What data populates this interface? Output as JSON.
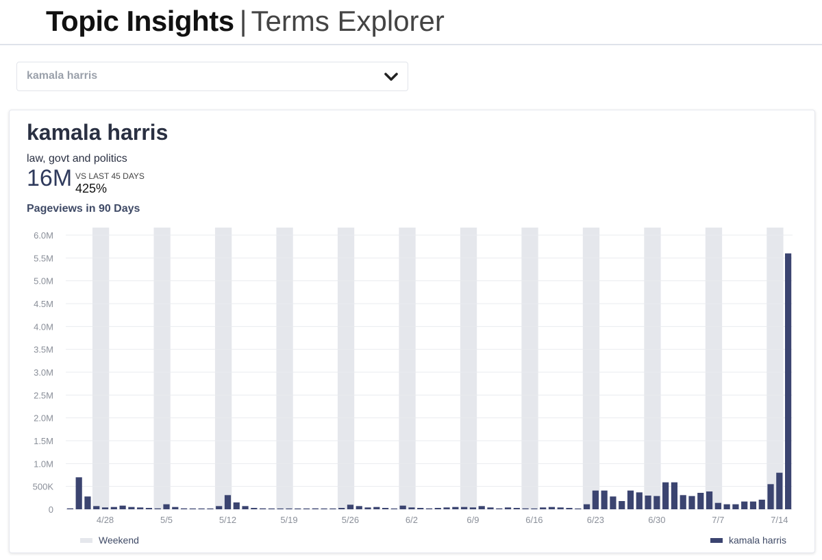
{
  "header": {
    "title": "Topic Insights",
    "separator": "|",
    "subtitle": "Terms Explorer"
  },
  "search": {
    "selected_value": "kamala harris",
    "chevron_icon": "chevron-down-icon"
  },
  "card": {
    "title": "kamala harris",
    "category": "law, govt and politics",
    "metric_value": "16M",
    "compare_label": "VS LAST 45 DAYS",
    "compare_value": "425%",
    "chart_caption": "Pageviews in 90 Days"
  },
  "colors": {
    "bar": "#3b4470",
    "weekend": "#e5e7ec",
    "grid": "#e9ebef",
    "tick_text": "#8a8f99"
  },
  "chart_data": {
    "type": "bar",
    "start_date": "4/24",
    "y_ticks": [
      "0",
      "500K",
      "1.0M",
      "1.5M",
      "2.0M",
      "2.5M",
      "3.0M",
      "3.5M",
      "4.0M",
      "4.5M",
      "5.0M",
      "5.5M",
      "6.0M"
    ],
    "ylim": [
      0,
      6200000
    ],
    "x_tick_labels": [
      "4/28",
      "5/5",
      "5/12",
      "5/19",
      "5/26",
      "6/2",
      "6/9",
      "6/16",
      "6/23",
      "6/30",
      "7/7",
      "7/14",
      "7/21"
    ],
    "weekend_label": "Weekend",
    "weekend_days": [
      "4/27-4/28",
      "5/4-5/5",
      "5/11-5/12",
      "5/18-5/19",
      "5/25-5/26",
      "6/1-6/2",
      "6/8-6/9",
      "6/15-6/16",
      "6/22-6/23",
      "6/29-6/30",
      "7/6-7/7",
      "7/13-7/14",
      "7/20-7/21"
    ],
    "series": [
      {
        "name": "kamala harris",
        "values": [
          20000,
          700000,
          280000,
          70000,
          40000,
          50000,
          80000,
          50000,
          40000,
          30000,
          20000,
          110000,
          50000,
          20000,
          10000,
          10000,
          10000,
          70000,
          310000,
          150000,
          70000,
          30000,
          20000,
          10000,
          10000,
          10000,
          10000,
          10000,
          20000,
          10000,
          10000,
          30000,
          100000,
          70000,
          40000,
          50000,
          30000,
          10000,
          80000,
          40000,
          30000,
          20000,
          30000,
          40000,
          50000,
          50000,
          40000,
          70000,
          40000,
          20000,
          40000,
          30000,
          20000,
          10000,
          40000,
          50000,
          40000,
          30000,
          10000,
          110000,
          410000,
          410000,
          280000,
          180000,
          410000,
          370000,
          300000,
          290000,
          590000,
          590000,
          310000,
          290000,
          360000,
          390000,
          140000,
          110000,
          110000,
          170000,
          170000,
          210000,
          550000,
          800000,
          5600000
        ]
      }
    ]
  }
}
